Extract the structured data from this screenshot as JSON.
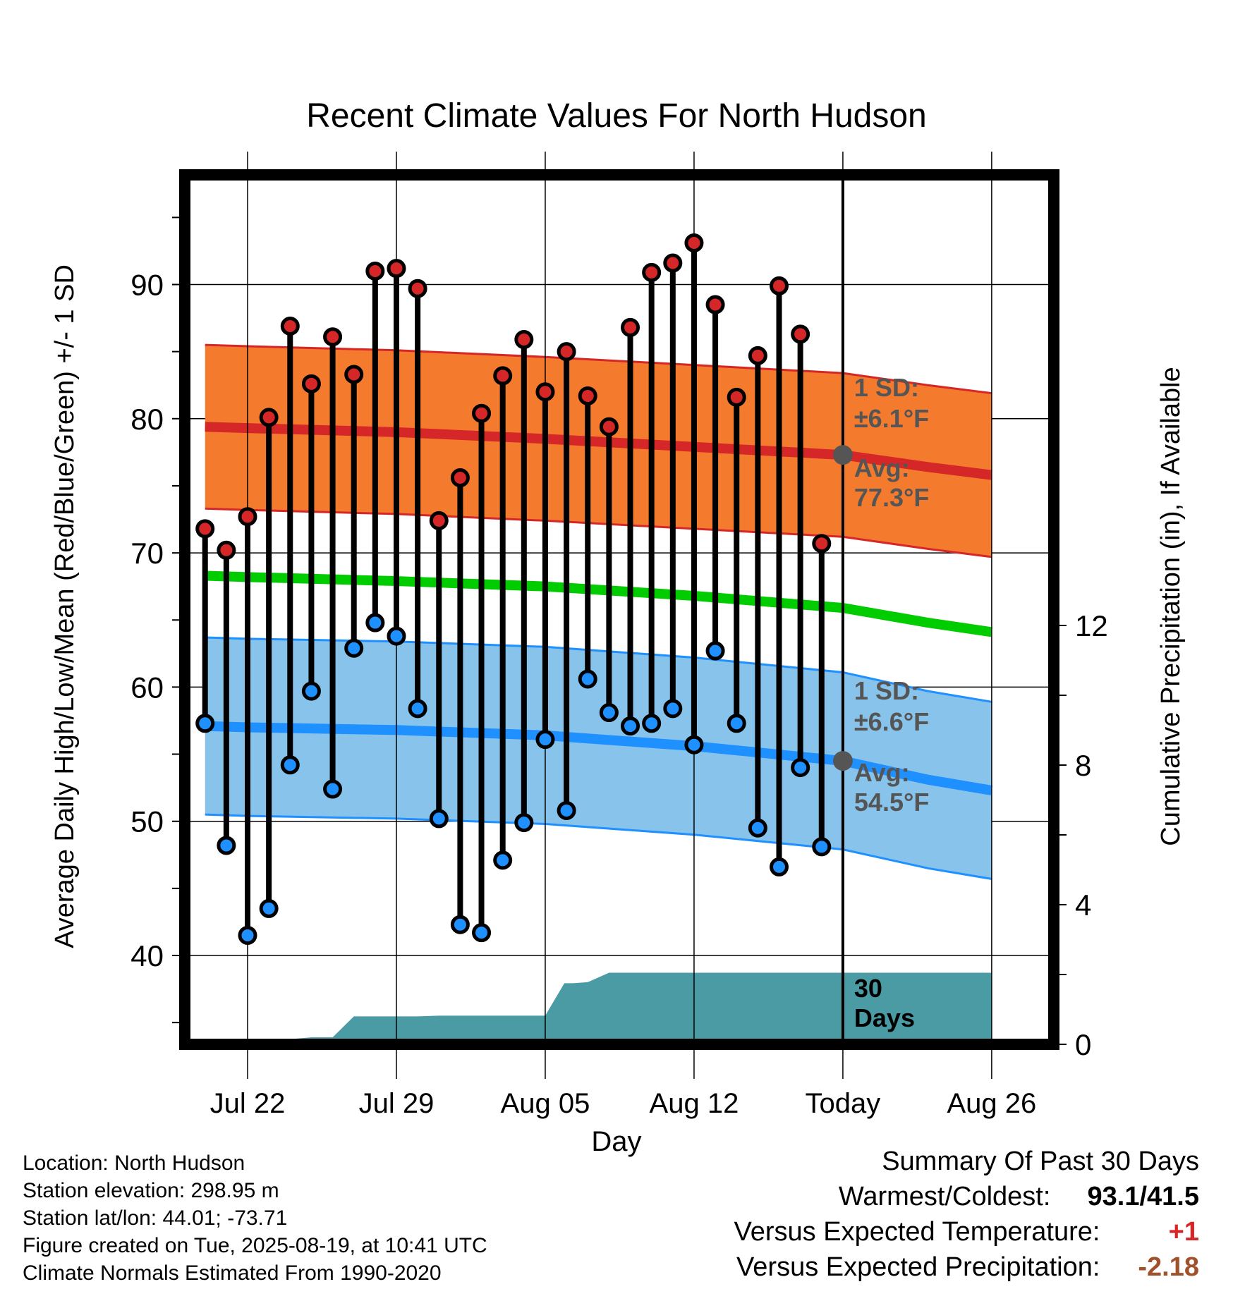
{
  "chart_data": {
    "type": "line",
    "title": "Recent Climate Values For North Hudson",
    "xlabel": "Day",
    "ylabel": "Average Daily High/Low/Mean (Red/Blue/Green) +/- 1 SD",
    "y2label": "Cumulative Precipitation (in), If Available",
    "ylim": [
      34,
      98
    ],
    "y2lim": [
      0,
      24.4
    ],
    "yticks": [
      "40",
      "50",
      "60",
      "70",
      "80",
      "90"
    ],
    "y2ticks": [
      "0",
      "4",
      "8",
      "12"
    ],
    "xticks": [
      "Jul 22",
      "Jul 29",
      "Aug 05",
      "Aug 12",
      "Today",
      "Aug 26"
    ],
    "today_label": "Today",
    "period_label": "30 Days",
    "high_band_label": "1 SD:",
    "high_sd_text": "±6.1°F",
    "high_avg_label": "Avg:",
    "high_avg_text": "77.3°F",
    "low_band_label": "1 SD:",
    "low_sd_text": "±6.6°F",
    "low_avg_label": "Avg:",
    "low_avg_text": "54.5°F",
    "grid": true,
    "colors": {
      "high_point": "#d62728",
      "low_point": "#1e90ff",
      "high_band": "#f47b2d",
      "high_line": "#d62728",
      "low_band": "#87c3ea",
      "low_line": "#1e90ff",
      "mean_line": "#00cc00",
      "precip": "#4a9ba3",
      "annotation": "#555555"
    },
    "normal_high": {
      "x": [
        -2,
        0,
        7,
        14,
        21,
        28,
        32,
        35
      ],
      "values": [
        79.4,
        79.3,
        79,
        78.5,
        77.9,
        77.3,
        76.4,
        75.8
      ]
    },
    "normal_high_sd": 6.1,
    "normal_low": {
      "x": [
        -2,
        0,
        7,
        14,
        21,
        28,
        32,
        35
      ],
      "values": [
        57.1,
        57.0,
        56.8,
        56.4,
        55.6,
        54.5,
        53.1,
        52.3
      ]
    },
    "normal_low_sd": 6.6,
    "normal_mean": {
      "x": [
        -2,
        0,
        7,
        14,
        21,
        28,
        32,
        35
      ],
      "values": [
        68.3,
        68.2,
        67.9,
        67.5,
        66.8,
        65.9,
        64.8,
        64.1
      ]
    },
    "daily_x": [
      -2,
      -1,
      0,
      1,
      2,
      3,
      4,
      5,
      6,
      7,
      8,
      9,
      10,
      11,
      12,
      13,
      14,
      15,
      16,
      17,
      18,
      19,
      20,
      21,
      22,
      23,
      24,
      25,
      26,
      27
    ],
    "series": [
      {
        "name": "High",
        "values": [
          71.8,
          70.2,
          72.7,
          80.1,
          86.9,
          82.6,
          86.1,
          83.3,
          91.0,
          91.2,
          89.7,
          72.4,
          75.6,
          80.4,
          83.2,
          85.9,
          82.0,
          85.0,
          81.7,
          79.4,
          86.8,
          90.9,
          91.6,
          93.1,
          88.5,
          81.6,
          84.7,
          89.9,
          86.3,
          70.7
        ]
      },
      {
        "name": "Low",
        "values": [
          57.3,
          48.2,
          41.5,
          43.5,
          54.2,
          59.7,
          52.4,
          62.9,
          64.8,
          63.8,
          58.4,
          50.2,
          42.3,
          41.7,
          47.1,
          49.9,
          56.1,
          50.8,
          60.6,
          58.1,
          57.1,
          57.3,
          58.4,
          55.7,
          62.7,
          57.3,
          49.5,
          46.6,
          54.0,
          48.1
        ]
      }
    ],
    "precip": {
      "x": [
        -2.4,
        -1.5,
        0,
        2,
        3,
        4,
        5,
        6,
        7,
        8,
        9,
        10,
        11,
        12,
        13,
        14,
        14.9,
        15.3,
        16,
        17,
        18,
        19,
        20,
        21,
        22,
        23,
        24,
        25,
        26,
        27,
        28,
        29,
        30,
        31,
        32,
        33,
        34,
        35
      ],
      "values": [
        0,
        0.15,
        0.15,
        0.15,
        0.2,
        0.2,
        0.8,
        0.8,
        0.8,
        0.8,
        0.82,
        0.82,
        0.82,
        0.82,
        0.82,
        0.82,
        1.75,
        1.75,
        1.78,
        2.05,
        2.05,
        2.05,
        2.05,
        2.05,
        2.05,
        2.05,
        2.05,
        2.05,
        2.05,
        2.05,
        2.05,
        2.05,
        2.05,
        2.05,
        2.05,
        2.05,
        2.05,
        2.05
      ]
    }
  },
  "footer": {
    "location": "Location: North Hudson",
    "elevation": "Station elevation: 298.95 m",
    "latlon": "Station lat/lon: 44.01; -73.71",
    "created": "Figure created on Tue, 2025-08-19, at 10:41 UTC",
    "normals": "Climate Normals Estimated From 1990-2020"
  },
  "summary": {
    "title": "Summary Of Past 30 Days",
    "warm_cold_label": "Warmest/Coldest:",
    "warm_cold_value": "93.1/41.5",
    "temp_label": "Versus Expected Temperature:",
    "temp_value": "+1",
    "temp_color": "#d62728",
    "precip_label": "Versus Expected Precipitation:",
    "precip_value": "-2.18",
    "precip_color": "#a0522d"
  }
}
